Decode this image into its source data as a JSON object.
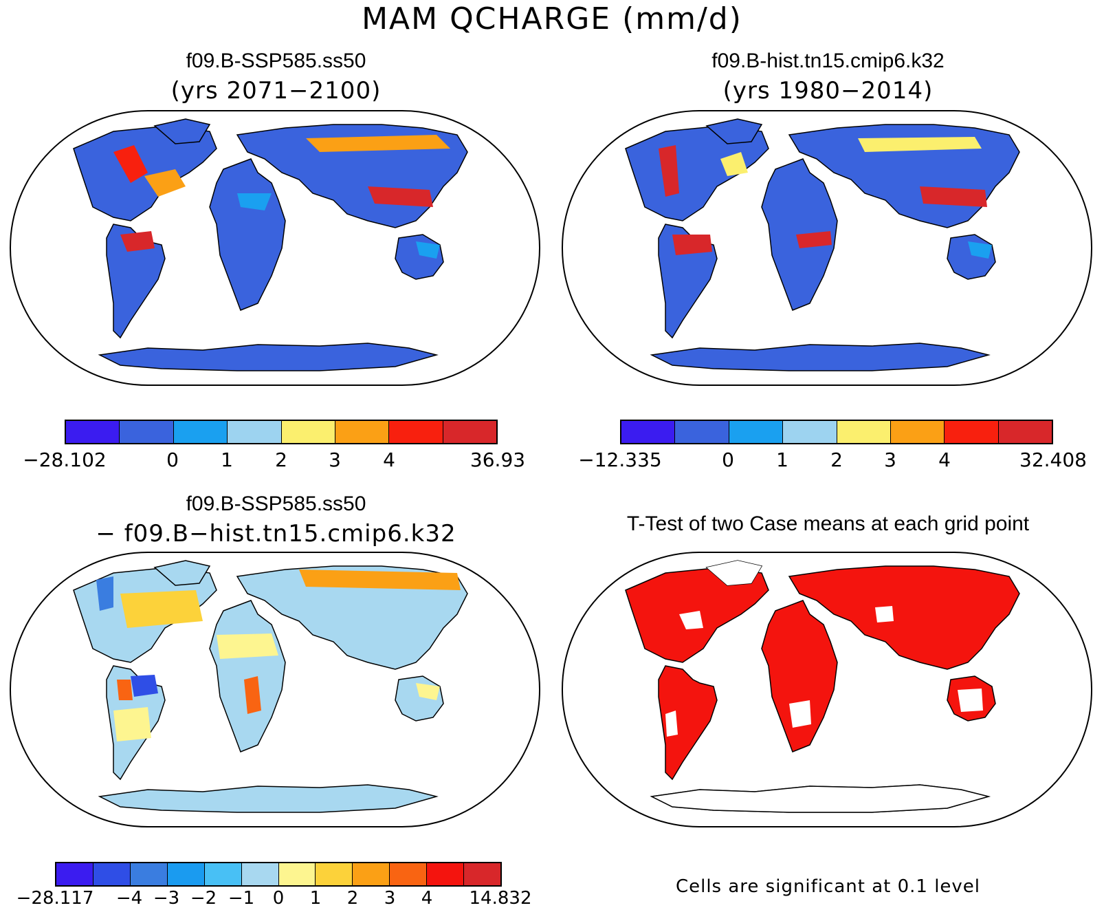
{
  "figure": {
    "title": "MAM QCHARGE (mm/d)"
  },
  "panels": [
    {
      "id": "case1",
      "title": "f09.B-SSP585.ss50",
      "subtitle": "(yrs 2071−2100)",
      "colorbar": {
        "colors": [
          "#3b1cf0",
          "#3a63dd",
          "#1aa0f0",
          "#9dd3f0",
          "#fbef6e",
          "#fba015",
          "#f8200e",
          "#d8272a"
        ],
        "tick_labels": [
          "−28.102",
          "0",
          "1",
          "2",
          "3",
          "4",
          "36.93"
        ]
      }
    },
    {
      "id": "case2",
      "title": "f09.B-hist.tn15.cmip6.k32",
      "subtitle": "(yrs 1980−2014)",
      "colorbar": {
        "colors": [
          "#3b1cf0",
          "#3a63dd",
          "#1aa0f0",
          "#9dd3f0",
          "#fbef6e",
          "#fba015",
          "#f8200e",
          "#d8272a"
        ],
        "tick_labels": [
          "−12.335",
          "0",
          "1",
          "2",
          "3",
          "4",
          "32.408"
        ]
      }
    },
    {
      "id": "diff",
      "title": "f09.B-SSP585.ss50",
      "subtitle": "−  f09.B−hist.tn15.cmip6.k32",
      "colorbar": {
        "colors": [
          "#3b1cf0",
          "#2f4ee6",
          "#3a7de0",
          "#1a9bf0",
          "#48c0f5",
          "#a8d8f0",
          "#fdf590",
          "#fcd23a",
          "#fba015",
          "#f96412",
          "#f4140e",
          "#d8272a"
        ],
        "tick_labels": [
          "−28.117",
          "−4",
          "−3",
          "−2",
          "−1",
          "0",
          "1",
          "2",
          "3",
          "4",
          "14.832"
        ]
      }
    },
    {
      "id": "ttest",
      "title": "T-Test of two Case means at each grid point",
      "note": "Cells are significant at 0.1 level"
    }
  ]
}
